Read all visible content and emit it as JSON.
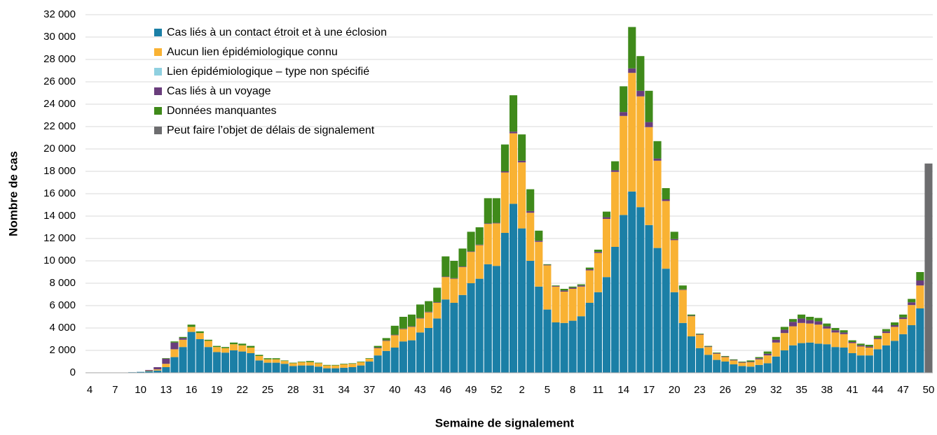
{
  "chart_data": {
    "type": "stacked_bar",
    "x_label": "Semaine de signalement",
    "y_label": "Nombre de cas",
    "categories": [
      "4",
      null,
      null,
      "7",
      null,
      null,
      "10",
      null,
      null,
      "13",
      null,
      null,
      "16",
      null,
      null,
      "19",
      null,
      null,
      "22",
      null,
      null,
      "25",
      null,
      null,
      "28",
      null,
      null,
      "31",
      null,
      null,
      "34",
      null,
      null,
      "37",
      null,
      null,
      "40",
      null,
      null,
      "43",
      null,
      null,
      "46",
      null,
      null,
      "49",
      null,
      null,
      "52",
      null,
      null,
      "2",
      null,
      null,
      "5",
      null,
      null,
      "8",
      null,
      null,
      "11",
      null,
      null,
      "14",
      null,
      null,
      "17",
      null,
      null,
      "20",
      null,
      null,
      "23",
      null,
      null,
      "26",
      null,
      null,
      "29",
      null,
      null,
      "32",
      null,
      null,
      "35",
      null,
      null,
      "38",
      null,
      null,
      "41",
      null,
      null,
      "44",
      null,
      null,
      "47",
      null,
      null,
      "50"
    ],
    "series": [
      {
        "name": "Cas liés à un contact étroit et à une éclosion",
        "color": "#1b7fa6",
        "values": [
          20,
          10,
          10,
          30,
          30,
          50,
          80,
          150,
          200,
          500,
          1400,
          2300,
          3650,
          3000,
          2300,
          1850,
          1800,
          2000,
          1900,
          1750,
          1100,
          900,
          900,
          800,
          600,
          650,
          650,
          550,
          400,
          400,
          450,
          500,
          650,
          1000,
          1550,
          1950,
          2250,
          2800,
          2900,
          3600,
          4000,
          4850,
          6550,
          6250,
          6950,
          8000,
          8400,
          9700,
          9550,
          12500,
          15100,
          12900,
          10000,
          7700,
          5650,
          4500,
          4450,
          4650,
          5050,
          6250,
          7200,
          8550,
          11250,
          14100,
          16200,
          14800,
          13200,
          11150,
          9300,
          7200,
          4450,
          3250,
          2200,
          1600,
          1150,
          1000,
          750,
          600,
          550,
          700,
          850,
          1450,
          2000,
          2450,
          2650,
          2700,
          2600,
          2550,
          2300,
          2250,
          1750,
          1550,
          1550,
          2100,
          2450,
          2850,
          3450,
          4250,
          5750,
          null
        ]
      },
      {
        "name": "Aucun lien épidémiologique connu",
        "color": "#f9b233",
        "values": [
          0,
          0,
          0,
          0,
          0,
          0,
          0,
          40,
          100,
          300,
          700,
          650,
          450,
          550,
          550,
          450,
          400,
          550,
          550,
          500,
          400,
          300,
          300,
          250,
          250,
          300,
          300,
          300,
          250,
          250,
          300,
          300,
          300,
          250,
          650,
          900,
          1100,
          1100,
          1200,
          1250,
          1400,
          1400,
          2000,
          2150,
          2500,
          2800,
          3000,
          3600,
          3800,
          5400,
          6300,
          5900,
          4300,
          4000,
          3950,
          3200,
          2800,
          2850,
          2650,
          2900,
          3500,
          5200,
          6700,
          8850,
          10600,
          9900,
          8750,
          7800,
          6050,
          4650,
          2950,
          1800,
          1200,
          700,
          550,
          400,
          350,
          300,
          400,
          500,
          700,
          1250,
          1550,
          1700,
          1800,
          1700,
          1700,
          1400,
          1300,
          1200,
          900,
          800,
          700,
          900,
          1100,
          1250,
          1350,
          1800,
          2050,
          null
        ]
      },
      {
        "name": "Lien épidémiologique – type non spécifié",
        "color": "#8fd0e0",
        "values": [
          0,
          0,
          0,
          0,
          0,
          0,
          0,
          0,
          0,
          0,
          0,
          0,
          0,
          0,
          0,
          0,
          0,
          0,
          0,
          0,
          0,
          0,
          0,
          0,
          0,
          0,
          0,
          0,
          0,
          0,
          0,
          0,
          0,
          0,
          0,
          0,
          0,
          0,
          0,
          0,
          0,
          0,
          0,
          0,
          0,
          0,
          0,
          0,
          0,
          0,
          0,
          0,
          0,
          0,
          0,
          0,
          0,
          0,
          0,
          0,
          0,
          0,
          0,
          0,
          0,
          0,
          0,
          0,
          0,
          0,
          0,
          0,
          0,
          0,
          0,
          0,
          0,
          0,
          0,
          0,
          0,
          0,
          0,
          0,
          0,
          0,
          0,
          0,
          0,
          0,
          0,
          0,
          0,
          0,
          0,
          0,
          0,
          0,
          0,
          null
        ]
      },
      {
        "name": "Cas liés à un voyage",
        "color": "#6a3d7c",
        "values": [
          0,
          0,
          0,
          0,
          0,
          0,
          0,
          60,
          200,
          450,
          600,
          150,
          0,
          0,
          0,
          0,
          0,
          0,
          0,
          0,
          0,
          0,
          0,
          0,
          0,
          0,
          0,
          0,
          0,
          0,
          0,
          0,
          0,
          0,
          50,
          50,
          50,
          50,
          50,
          50,
          50,
          50,
          50,
          50,
          50,
          50,
          50,
          50,
          50,
          100,
          150,
          150,
          150,
          100,
          50,
          50,
          100,
          100,
          100,
          100,
          100,
          150,
          150,
          350,
          400,
          500,
          450,
          200,
          150,
          100,
          50,
          50,
          50,
          50,
          50,
          50,
          50,
          50,
          50,
          100,
          150,
          250,
          300,
          400,
          400,
          300,
          300,
          200,
          200,
          150,
          100,
          100,
          100,
          100,
          150,
          150,
          150,
          250,
          450,
          null
        ]
      },
      {
        "name": "Données manquantes",
        "color": "#3f8a1a",
        "values": [
          0,
          0,
          0,
          0,
          0,
          0,
          0,
          0,
          0,
          50,
          100,
          100,
          200,
          150,
          100,
          100,
          100,
          150,
          150,
          150,
          100,
          100,
          100,
          50,
          50,
          50,
          100,
          50,
          50,
          50,
          50,
          50,
          50,
          50,
          150,
          200,
          800,
          1050,
          1050,
          1200,
          950,
          1300,
          1800,
          1550,
          1600,
          1750,
          1550,
          2250,
          2200,
          2400,
          3250,
          2350,
          1950,
          900,
          50,
          50,
          150,
          100,
          100,
          150,
          200,
          500,
          800,
          2300,
          3700,
          3100,
          2800,
          1550,
          1000,
          650,
          350,
          100,
          50,
          50,
          50,
          50,
          50,
          50,
          100,
          100,
          200,
          250,
          250,
          250,
          350,
          300,
          300,
          250,
          200,
          200,
          150,
          150,
          150,
          200,
          200,
          250,
          250,
          300,
          750,
          null
        ]
      },
      {
        "name": "Peut faire l’objet de délais de signalement",
        "color": "#6d6d6f",
        "values": [
          null,
          null,
          null,
          null,
          null,
          null,
          null,
          null,
          null,
          null,
          null,
          null,
          null,
          null,
          null,
          null,
          null,
          null,
          null,
          null,
          null,
          null,
          null,
          null,
          null,
          null,
          null,
          null,
          null,
          null,
          null,
          null,
          null,
          null,
          null,
          null,
          null,
          null,
          null,
          null,
          null,
          null,
          null,
          null,
          null,
          null,
          null,
          null,
          null,
          null,
          null,
          null,
          null,
          null,
          null,
          null,
          null,
          null,
          null,
          null,
          null,
          null,
          null,
          null,
          null,
          null,
          null,
          null,
          null,
          null,
          null,
          null,
          null,
          null,
          null,
          null,
          null,
          null,
          null,
          null,
          null,
          null,
          null,
          null,
          null,
          null,
          null,
          null,
          null,
          null,
          null,
          null,
          null,
          null,
          null,
          null,
          null,
          null,
          null,
          18700
        ]
      }
    ],
    "ylim": [
      0,
      32000
    ],
    "yticks": [
      0,
      {
        "value": 2000,
        "label": "2 000"
      },
      {
        "value": 4000,
        "label": "4 000"
      },
      {
        "value": 6000,
        "label": "6 000"
      },
      {
        "value": 8000,
        "label": "8 000"
      },
      {
        "value": 10000,
        "label": "10 000"
      },
      {
        "value": 12000,
        "label": "12 000"
      },
      {
        "value": 14000,
        "label": "14 000"
      },
      {
        "value": 16000,
        "label": "16 000"
      },
      {
        "value": 18000,
        "label": "18 000"
      },
      {
        "value": 20000,
        "label": "20 000"
      },
      {
        "value": 22000,
        "label": "22 000"
      },
      {
        "value": 24000,
        "label": "24 000"
      },
      {
        "value": 26000,
        "label": "26 000"
      },
      {
        "value": 28000,
        "label": "28 000"
      },
      {
        "value": 30000,
        "label": "30 000"
      },
      {
        "value": 32000,
        "label": "32 000"
      }
    ],
    "grid": true,
    "legend": "upper left"
  }
}
